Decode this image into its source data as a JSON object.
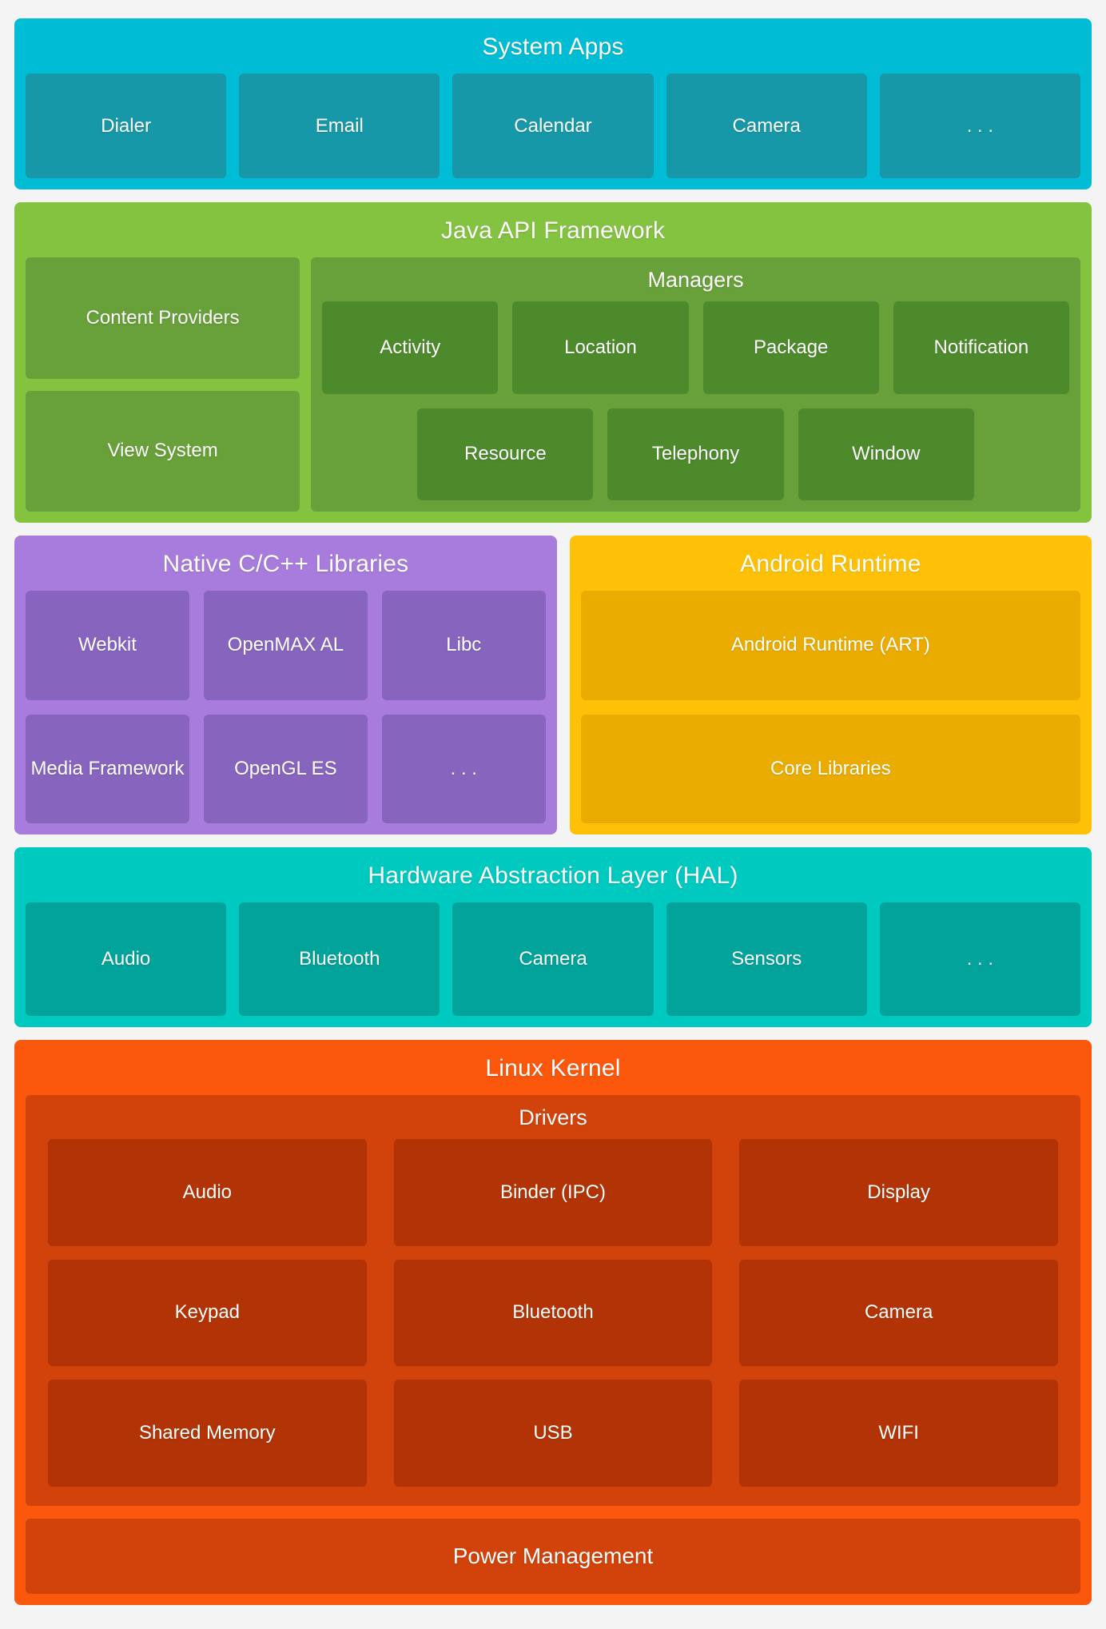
{
  "page": {
    "background": "#F4F4F4",
    "text_color": "#FFFFFF"
  },
  "layers": {
    "system_apps": {
      "title": "System Apps",
      "colors": {
        "bg": "#00BCD4",
        "box": "#1798A8"
      },
      "boxes": [
        "Dialer",
        "Email",
        "Calendar",
        "Camera",
        ". . ."
      ]
    },
    "java_api": {
      "title": "Java API Framework",
      "colors": {
        "bg": "#84C340",
        "panel": "#68A03A",
        "box": "#4D8A2C"
      },
      "left_boxes": [
        "Content Providers",
        "View System"
      ],
      "managers": {
        "title": "Managers",
        "row1": [
          "Activity",
          "Location",
          "Package",
          "Notification"
        ],
        "row2": [
          "Resource",
          "Telephony",
          "Window"
        ]
      }
    },
    "native_libs": {
      "title": "Native C/C++ Libraries",
      "colors": {
        "bg": "#A77CDC",
        "box": "#8765BE"
      },
      "boxes": [
        "Webkit",
        "OpenMAX AL",
        "Libc",
        "Media Framework",
        "OpenGL ES",
        ". . ."
      ]
    },
    "android_runtime": {
      "title": "Android Runtime",
      "colors": {
        "bg": "#FFC107",
        "box": "#EAAC00"
      },
      "boxes": [
        "Android Runtime (ART)",
        "Core Libraries"
      ]
    },
    "hal": {
      "title": "Hardware Abstraction Layer (HAL)",
      "colors": {
        "bg": "#00C9BF",
        "box": "#01A39B"
      },
      "boxes": [
        "Audio",
        "Bluetooth",
        "Camera",
        "Sensors",
        ". . ."
      ]
    },
    "linux_kernel": {
      "title": "Linux Kernel",
      "colors": {
        "bg": "#FB570D",
        "panel": "#D2430B",
        "box": "#B23406"
      },
      "drivers": {
        "title": "Drivers",
        "boxes": [
          "Audio",
          "Binder (IPC)",
          "Display",
          "Keypad",
          "Bluetooth",
          "Camera",
          "Shared Memory",
          "USB",
          "WIFI"
        ]
      },
      "power": "Power Management"
    }
  }
}
